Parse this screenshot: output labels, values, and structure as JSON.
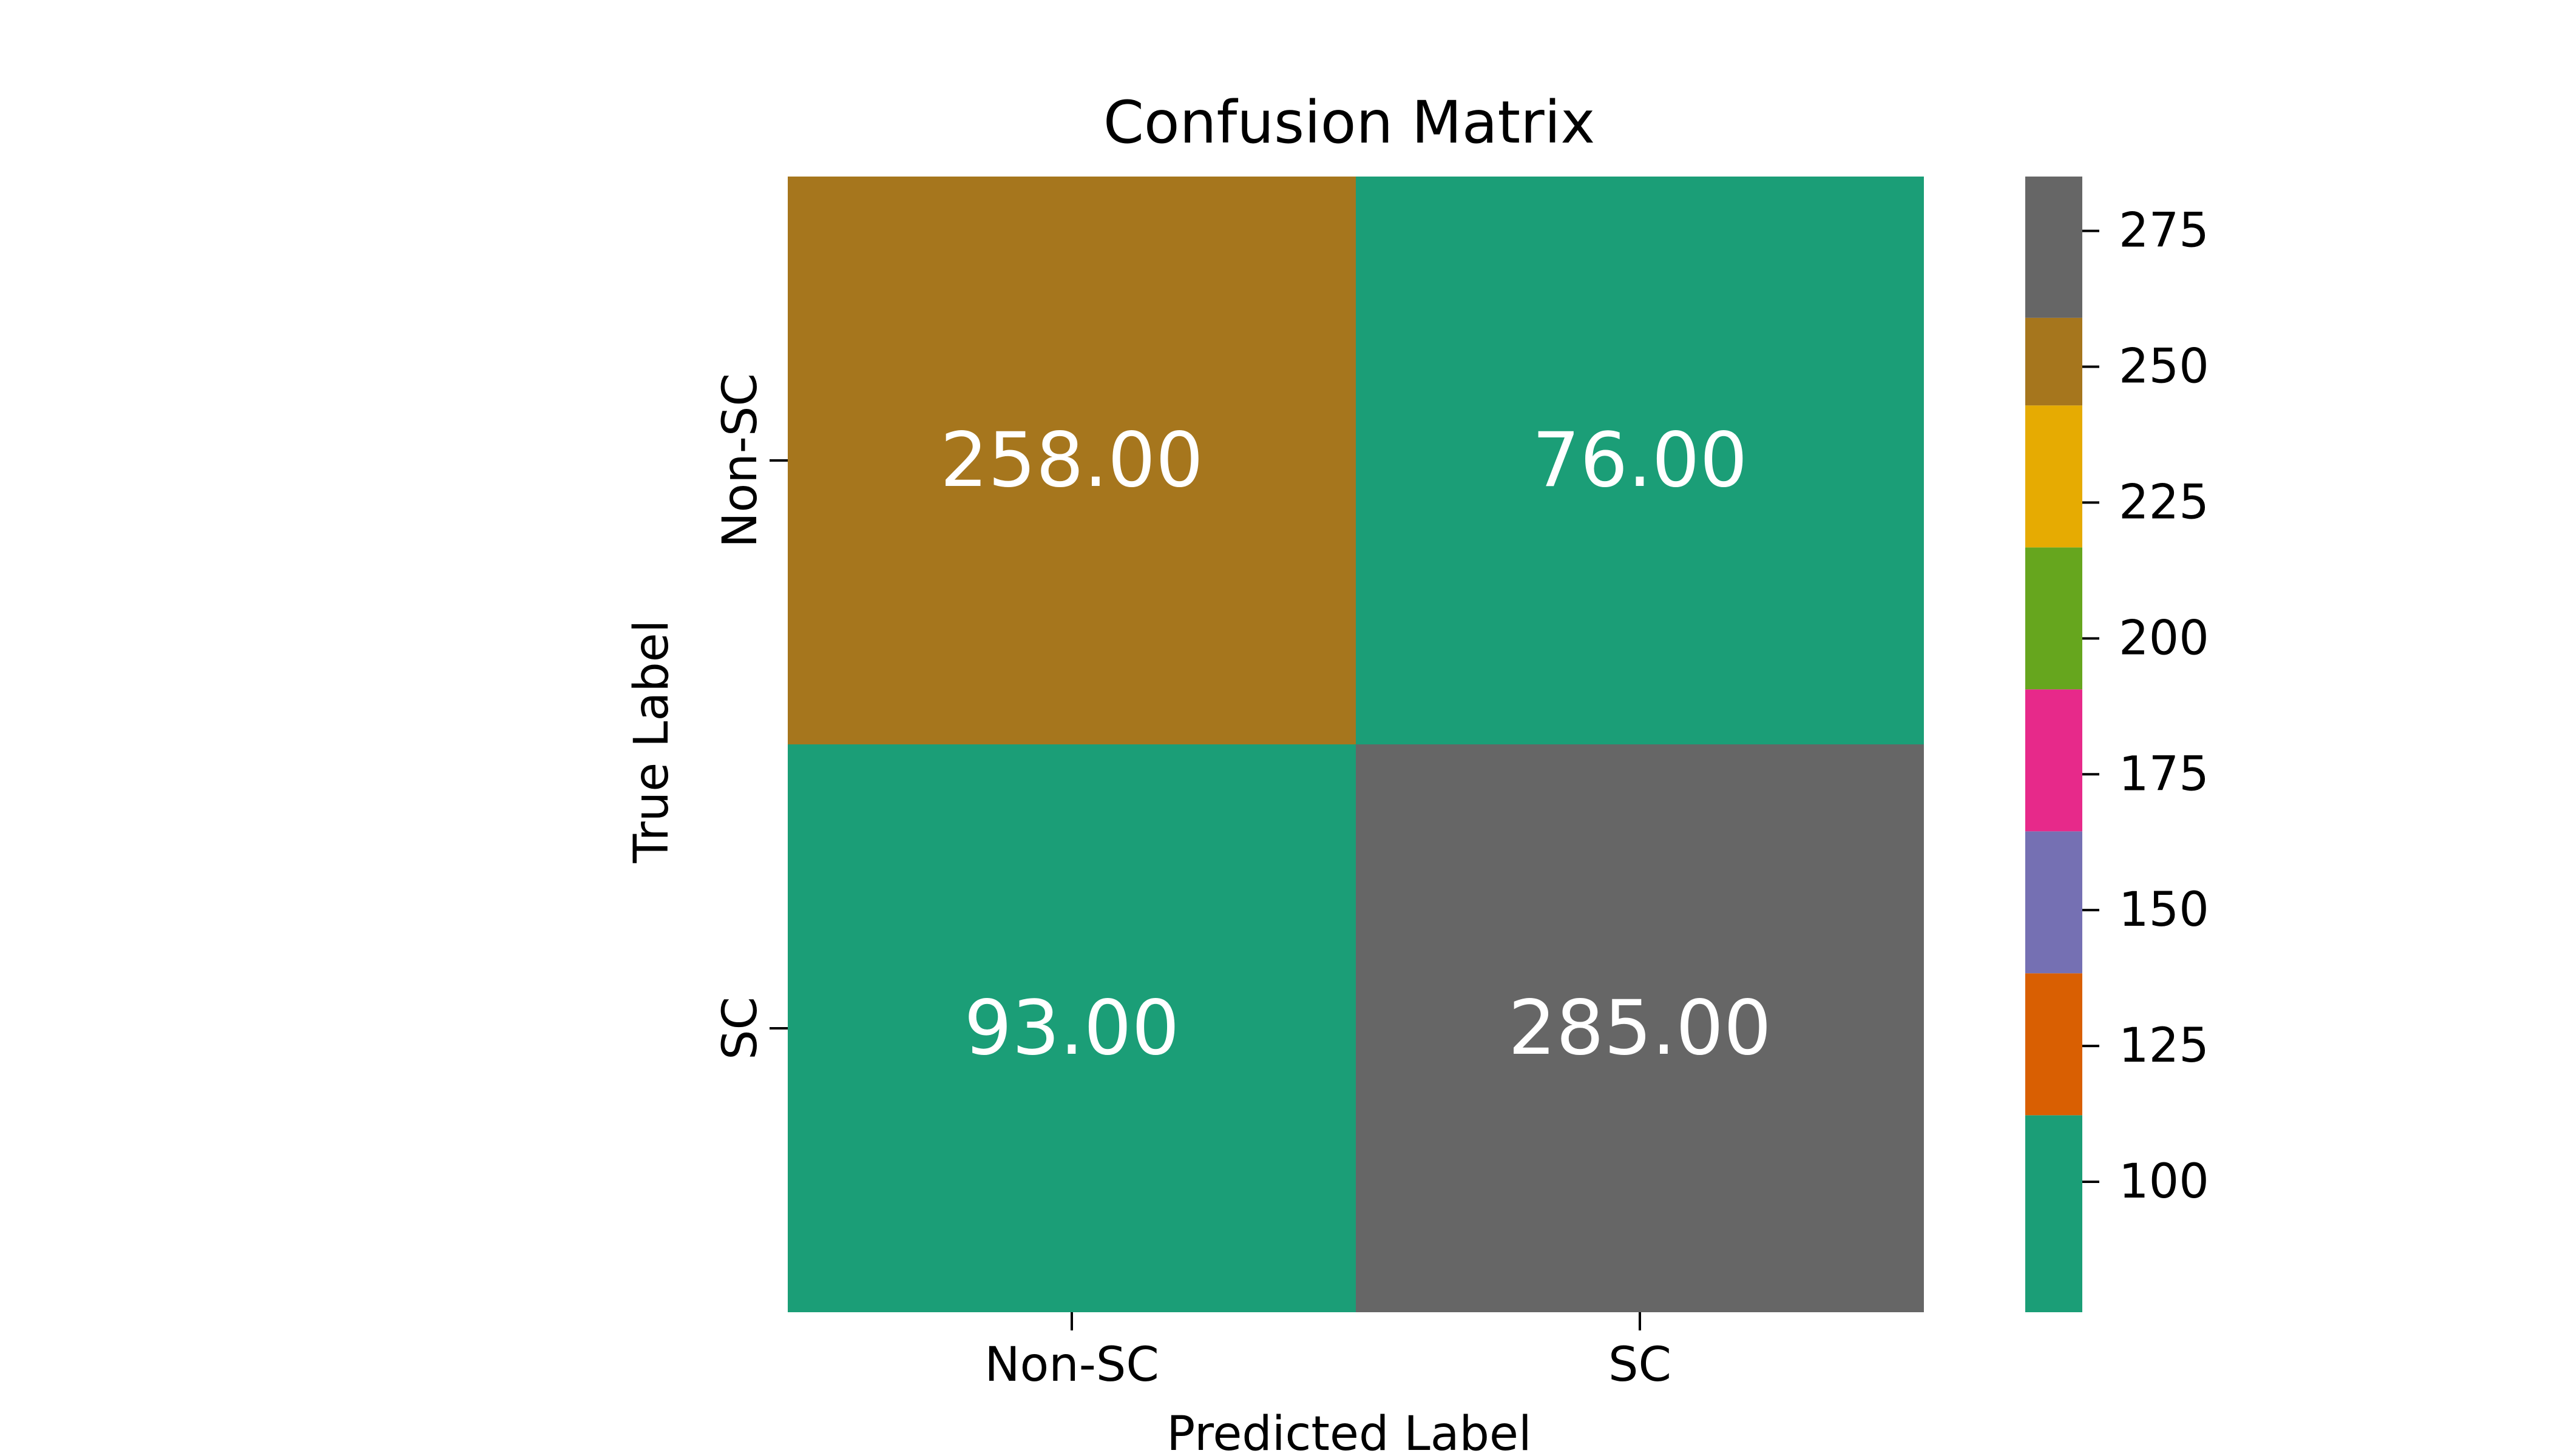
{
  "chart_data": {
    "type": "heatmap",
    "title": "Confusion Matrix",
    "xlabel": "Predicted Label",
    "ylabel": "True Label",
    "x_categories": [
      "Non-SC",
      "SC"
    ],
    "y_categories": [
      "Non-SC",
      "SC"
    ],
    "values": [
      [
        258,
        76
      ],
      [
        93,
        285
      ]
    ],
    "cell_labels": [
      [
        "258.00",
        "76.00"
      ],
      [
        "93.00",
        "285.00"
      ]
    ],
    "colorbar": {
      "range": [
        76,
        285
      ],
      "ticks": [
        100,
        125,
        150,
        175,
        200,
        225,
        250,
        275
      ],
      "tick_labels": [
        "100",
        "125",
        "150",
        "175",
        "200",
        "225",
        "250",
        "275"
      ],
      "bands": [
        {
          "from": 76,
          "to": 112.25,
          "color": "#1b9e77"
        },
        {
          "from": 112.25,
          "to": 138.375,
          "color": "#d95f02"
        },
        {
          "from": 138.375,
          "to": 164.5,
          "color": "#7570b3"
        },
        {
          "from": 164.5,
          "to": 190.625,
          "color": "#e7298a"
        },
        {
          "from": 190.625,
          "to": 216.75,
          "color": "#66a61e"
        },
        {
          "from": 216.75,
          "to": 242.875,
          "color": "#e6ab02"
        },
        {
          "from": 242.875,
          "to": 259,
          "color": "#a6761d"
        },
        {
          "from": 259,
          "to": 285,
          "color": "#666666"
        }
      ]
    },
    "colormap": "Dark2 (discrete)"
  }
}
